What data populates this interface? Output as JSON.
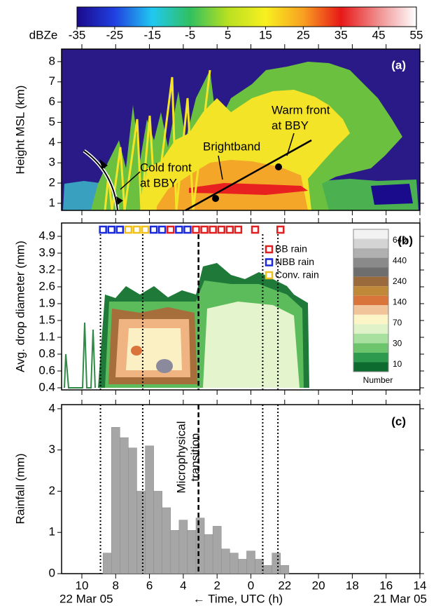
{
  "chart_data": [
    {
      "type": "heatmap",
      "panel_label": "(a)",
      "y_label": "Height MSL (km)",
      "ylim": [
        0.65,
        8.62
      ],
      "yticks": [
        1,
        2,
        3,
        4,
        5,
        6,
        7,
        8
      ],
      "colorbar": {
        "label": "dBZe",
        "ticks": [
          -35,
          -25,
          -15,
          -5,
          5,
          15,
          25,
          35,
          45,
          55
        ],
        "colors": [
          "#1a0a8c",
          "#2040e0",
          "#20c8f0",
          "#30c060",
          "#b8e020",
          "#f8f020",
          "#f8a020",
          "#e81818",
          "#f09090",
          "#ffffff"
        ]
      },
      "annotations": {
        "warm_front": [
          "Warm front",
          "at BBY"
        ],
        "brightband": "Brightband",
        "cold_front": [
          "Cold front",
          "at BBY"
        ]
      }
    },
    {
      "type": "heatmap",
      "panel_label": "(b)",
      "y_label": "Avg. drop diameter (mm)",
      "yticks": [
        0.4,
        0.6,
        0.8,
        1.1,
        1.5,
        1.9,
        2.6,
        3.2,
        3.9,
        4.9
      ],
      "rain_types": [
        {
          "name": "BB rain",
          "color": "#e02020",
          "x": [
            4.75,
            3.25,
            2.75,
            2.25,
            1.75,
            1.25,
            0.75,
            -0.25,
            -1.75
          ]
        },
        {
          "name": "NBB rain",
          "color": "#1a2ad8",
          "x": [
            8.75,
            8.25,
            7.75,
            5.75,
            5.25,
            4.25,
            3.75
          ]
        },
        {
          "name": "Conv. rain",
          "color": "#f0c020",
          "x": [
            7.25,
            6.75,
            6.25
          ]
        }
      ],
      "count_colorbar": {
        "label": "Number",
        "ticks": [
          640,
          440,
          240,
          140,
          70,
          30,
          10
        ],
        "colors": [
          "#f2f2f2",
          "#d4d4d4",
          "#b0b0b0",
          "#8a8a8a",
          "#6e6e6e",
          "#9b6a3c",
          "#c0893a",
          "#d9743a",
          "#f2c49a",
          "#fbf5c8",
          "#dff2c8",
          "#a8e0a0",
          "#6cc46c",
          "#2e9a4e",
          "#0e6b30"
        ]
      },
      "period_lines": [
        8.9,
        6.4,
        -0.7,
        -1.6
      ],
      "transition": 3.1
    },
    {
      "type": "bar",
      "panel_label": "(c)",
      "y_label": "Rainfall (mm)",
      "color": "#a6a6a6",
      "x": [
        8.5,
        8.0,
        7.5,
        7.0,
        6.5,
        6.0,
        5.5,
        5.0,
        4.5,
        4.0,
        3.5,
        3.0,
        2.5,
        2.0,
        1.5,
        1.0,
        0.5,
        0.0,
        -0.5,
        -1.0,
        -1.5,
        -2.0
      ],
      "values": [
        0.5,
        3.55,
        3.3,
        3.05,
        2.0,
        3.1,
        2.0,
        1.6,
        1.05,
        1.3,
        1.05,
        1.35,
        0.95,
        1.15,
        0.6,
        0.5,
        0.35,
        0.55,
        0.35,
        0.2,
        0.5,
        0.2
      ],
      "ylim": [
        0,
        4.1
      ],
      "yticks": [
        0,
        1,
        2,
        3,
        4
      ],
      "xlim": [
        11.2,
        -10
      ],
      "xticks": [
        10,
        8,
        6,
        4,
        2,
        0,
        {
          "value": -2,
          "label": "22"
        },
        {
          "value": -4,
          "label": "20"
        },
        {
          "value": -6,
          "label": "18"
        },
        {
          "value": -8,
          "label": "16"
        },
        {
          "value": -10,
          "label": "14"
        }
      ],
      "x_label": "← Time, UTC (h)",
      "date_left": "22 Mar 05",
      "date_right": "21 Mar 05",
      "annotation": [
        "Microphysical",
        "transition"
      ]
    }
  ]
}
